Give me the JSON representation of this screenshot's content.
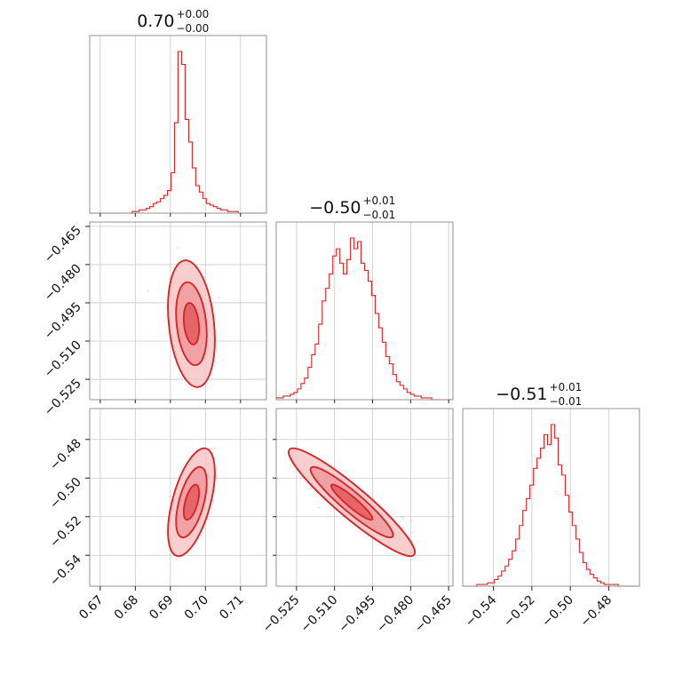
{
  "colors": {
    "primary": "#d62728",
    "c1": "#f7c6c7",
    "c2": "#ef9a9c",
    "c3": "#e35a5e"
  },
  "chart_data": {
    "type": "corner",
    "parameters": [
      {
        "title_value": "0.70",
        "title_plus": "+0.00",
        "title_minus": "−0.00",
        "median": 0.696,
        "sigma": 0.0022,
        "range": [
          0.667,
          0.7174
        ]
      },
      {
        "title_value": "−0.50",
        "title_plus": "+0.01",
        "title_minus": "−0.01",
        "median": -0.5032,
        "sigma": 0.0082,
        "range": [
          -0.533,
          -0.4633
        ]
      },
      {
        "title_value": "−0.51",
        "title_plus": "+0.01",
        "title_minus": "−0.01",
        "median": -0.5125,
        "sigma": 0.0092,
        "range": [
          -0.556,
          -0.464
        ]
      }
    ],
    "ticks": [
      [
        "0.67",
        "0.68",
        "0.69",
        "0.70",
        "0.71"
      ],
      [
        "−0.465",
        "−0.480",
        "−0.495",
        "−0.510",
        "−0.525"
      ],
      [
        "−0.48",
        "−0.50",
        "−0.52",
        "−0.54"
      ]
    ],
    "tick_values": [
      [
        0.67,
        0.68,
        0.69,
        0.7,
        0.71
      ],
      [
        -0.465,
        -0.48,
        -0.495,
        -0.51,
        -0.525
      ],
      [
        -0.48,
        -0.5,
        -0.52,
        -0.54
      ]
    ],
    "x_tick_labels_col1": [
      "−0.525",
      "−0.510",
      "−0.495",
      "−0.480",
      "−0.465"
    ],
    "x_tick_values_col1": [
      -0.525,
      -0.51,
      -0.495,
      -0.48,
      -0.465
    ],
    "x_tick_labels_col2": [
      "−0.54",
      "−0.52",
      "−0.50",
      "−0.48"
    ],
    "x_tick_values_col2": [
      -0.54,
      -0.52,
      -0.5,
      -0.48
    ],
    "histograms": [
      {
        "counts": [
          0,
          0,
          0,
          0,
          0,
          0,
          0,
          0,
          0,
          0,
          0,
          0,
          1,
          1,
          2,
          2,
          3,
          4,
          6,
          7,
          9,
          11,
          14,
          25,
          56,
          100,
          92,
          58,
          44,
          28,
          17,
          13,
          9,
          6,
          5,
          4,
          3,
          2,
          2,
          1,
          1,
          1,
          0,
          0,
          0,
          0,
          0,
          0,
          0,
          0
        ]
      },
      {
        "counts": [
          1,
          1,
          2,
          2,
          3,
          4,
          6,
          9,
          12,
          18,
          25,
          31,
          42,
          55,
          62,
          70,
          80,
          84,
          76,
          70,
          78,
          90,
          84,
          88,
          76,
          72,
          66,
          58,
          48,
          40,
          32,
          24,
          20,
          14,
          10,
          8,
          6,
          4,
          3,
          2,
          2,
          1,
          1,
          1,
          0,
          0,
          0,
          0,
          0,
          0
        ]
      },
      {
        "counts": [
          0,
          0,
          0,
          0,
          1,
          1,
          1,
          2,
          2,
          4,
          6,
          9,
          12,
          16,
          21,
          28,
          36,
          45,
          52,
          60,
          70,
          76,
          82,
          90,
          84,
          96,
          88,
          72,
          66,
          54,
          44,
          36,
          28,
          20,
          14,
          10,
          7,
          5,
          3,
          2,
          1,
          1,
          1,
          1,
          0,
          0,
          0,
          0,
          0,
          0
        ]
      }
    ],
    "correlations": {
      "p0_p1": -0.25,
      "p0_p2": 0.55,
      "p1_p2": -0.93
    },
    "contour_levels": [
      0.39,
      0.86,
      0.99
    ],
    "grid": true
  }
}
